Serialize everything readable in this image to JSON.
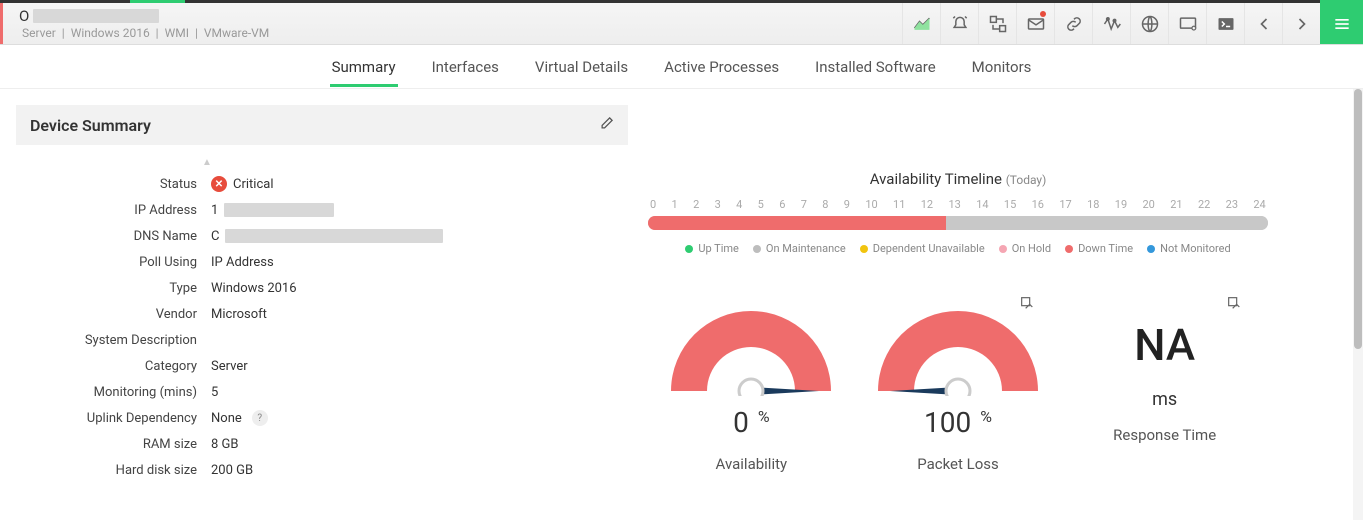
{
  "header": {
    "device_initial": "O",
    "breadcrumb": [
      "Server",
      "Windows 2016",
      "WMI",
      "VMware-VM"
    ]
  },
  "toolbar_icons": [
    "chart-area-icon",
    "alarm-icon",
    "swap-icon",
    "mail-icon",
    "link-icon",
    "activity-icon",
    "globe-icon",
    "monitor-icon",
    "terminal-icon",
    "chevron-left-icon",
    "chevron-right-icon"
  ],
  "tabs": [
    {
      "label": "Summary",
      "active": true
    },
    {
      "label": "Interfaces",
      "active": false
    },
    {
      "label": "Virtual Details",
      "active": false
    },
    {
      "label": "Active Processes",
      "active": false
    },
    {
      "label": "Installed Software",
      "active": false
    },
    {
      "label": "Monitors",
      "active": false
    }
  ],
  "section_title": "Device Summary",
  "summary": {
    "rows": [
      {
        "label": "Status",
        "value": "Critical",
        "status": true
      },
      {
        "label": "IP Address",
        "value": "1",
        "redact_w": 110
      },
      {
        "label": "DNS Name",
        "value": "C",
        "redact_w": 218
      },
      {
        "label": "Poll Using",
        "value": "IP Address"
      },
      {
        "label": "Type",
        "value": "Windows 2016"
      },
      {
        "label": "Vendor",
        "value": "Microsoft"
      },
      {
        "label": "System Description",
        "value": ""
      },
      {
        "label": "Category",
        "value": "Server"
      },
      {
        "label": "Monitoring (mins)",
        "value": "5"
      },
      {
        "label": "Uplink Dependency",
        "value": "None",
        "help": true
      },
      {
        "label": "RAM size",
        "value": "8 GB"
      },
      {
        "label": "Hard disk size",
        "value": "200 GB"
      }
    ]
  },
  "timeline": {
    "title": "Availability Timeline",
    "subtitle": "(Today)",
    "ticks": [
      "0",
      "1",
      "2",
      "3",
      "4",
      "5",
      "6",
      "7",
      "8",
      "9",
      "10",
      "11",
      "12",
      "13",
      "14",
      "15",
      "16",
      "17",
      "18",
      "19",
      "20",
      "21",
      "22",
      "23",
      "24"
    ],
    "segments": [
      {
        "color": "#ef6c6c",
        "pct": 48
      },
      {
        "color": "#c8c8c8",
        "pct": 52
      }
    ],
    "legend": [
      {
        "label": "Up Time",
        "color": "#2ecc71"
      },
      {
        "label": "On Maintenance",
        "color": "#bdbdbd"
      },
      {
        "label": "Dependent Unavailable",
        "color": "#f1c40f"
      },
      {
        "label": "On Hold",
        "color": "#f5a6b3"
      },
      {
        "label": "Down Time",
        "color": "#ef6c6c"
      },
      {
        "label": "Not Monitored",
        "color": "#3498db"
      }
    ]
  },
  "gauges": {
    "color_arc": "#ef6c6c",
    "color_needle": "#1a3a5c",
    "items": [
      {
        "value": "0",
        "unit": "%",
        "label": "Availability",
        "angle": 0,
        "type": "gauge"
      },
      {
        "value": "100",
        "unit": "%",
        "label": "Packet Loss",
        "angle": 180,
        "type": "gauge",
        "btn": true
      },
      {
        "value": "NA",
        "unit": "ms",
        "label": "Response Time",
        "type": "na",
        "btn": true
      }
    ]
  },
  "colors": {
    "accent": "#2ecc71",
    "critical": "#e74c3c",
    "gray_bg": "#f2f2f2"
  }
}
